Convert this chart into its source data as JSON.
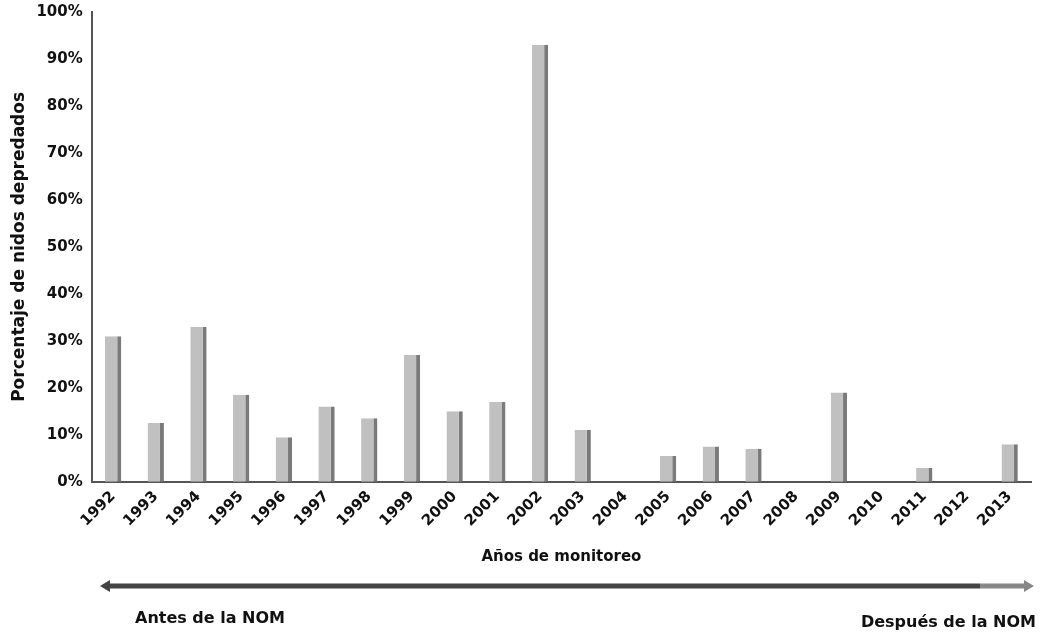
{
  "chart_data": {
    "type": "bar",
    "xlabel": "Años de monitoreo",
    "ylabel": "Porcentaje de nidos depredados",
    "categories": [
      "1992",
      "1993",
      "1994",
      "1995",
      "1996",
      "1997",
      "1998",
      "1999",
      "2000",
      "2001",
      "2002",
      "2003",
      "2004",
      "2005",
      "2006",
      "2007",
      "2008",
      "2009",
      "2010",
      "2011",
      "2012",
      "2013"
    ],
    "values": [
      31,
      12.5,
      33,
      18.5,
      9.5,
      16,
      13.5,
      27,
      15,
      17,
      93,
      11,
      0,
      5.5,
      7.5,
      7,
      0,
      19,
      0,
      3,
      0,
      8
    ],
    "color": "#c0c0c0",
    "ylim": [
      0,
      100
    ],
    "yticks": [
      {
        "value": 0,
        "label": "0%"
      },
      {
        "value": 10,
        "label": "10%"
      },
      {
        "value": 20,
        "label": "20%"
      },
      {
        "value": 30,
        "label": "30%"
      },
      {
        "value": 40,
        "label": "40%"
      },
      {
        "value": 50,
        "label": "50%"
      },
      {
        "value": 60,
        "label": "60%"
      },
      {
        "value": 70,
        "label": "70%"
      },
      {
        "value": 80,
        "label": "80%"
      },
      {
        "value": 90,
        "label": "90%"
      },
      {
        "value": 100,
        "label": "100%"
      }
    ],
    "grid": false,
    "legend": false,
    "annotations": [
      "Antes de la NOM",
      "Después de la NOM"
    ]
  }
}
